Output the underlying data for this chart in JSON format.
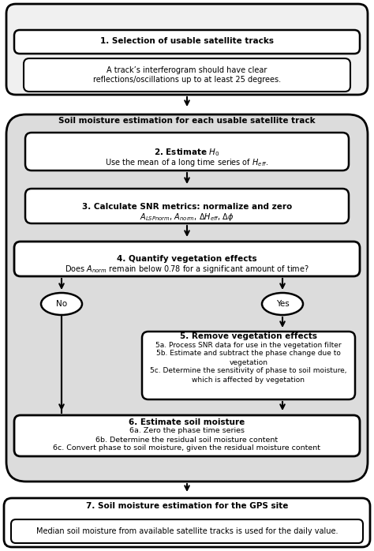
{
  "bg_color": "#ffffff",
  "gray_bg": "#dcdcdc",
  "box_bg": "#ffffff",
  "step1_title": "1. Selection of usable satellite tracks",
  "step1_body": "A track’s interferogram should have clear\nreflections/oscillations up to at least 25 degrees.",
  "loop_label": "Soil moisture estimation for each usable satellite track",
  "step2_title": "2. Estimate $H_0$",
  "step2_body": "Use the mean of a long time series of $H_{eff}$.",
  "step3_title": "3. Calculate SNR metrics: normalize and zero",
  "step3_body": "$A_{LSPnorm}$, $A_{norm}$, $\\Delta H_{eff}$, $\\Delta\\phi$",
  "step4_title": "4. Quantify vegetation effects",
  "step4_body": "Does $A_{norm}$ remain below 0.78 for a significant amount of time?",
  "no_label": "No",
  "yes_label": "Yes",
  "step5_title": "5. Remove vegetation effects",
  "step5_lines": [
    "5a. Process SNR data for use in the vegetation filter",
    "5b. Estimate and subtract the phase change due to",
    "vegetation",
    "5c. Determine the sensitivity of phase to soil moisture,",
    "which is affected by vegetation"
  ],
  "step6_title": "6. Estimate soil moisture",
  "step6_lines": [
    "6a. Zero the phase time series",
    "6b. Determine the residual soil moisture content",
    "6c. Convert phase to soil moisture, given the residual moisture content"
  ],
  "step7_title": "7. Soil moisture estimation for the GPS site",
  "step7_body": "Median soil moisture from available satellite tracks is used for the daily value."
}
